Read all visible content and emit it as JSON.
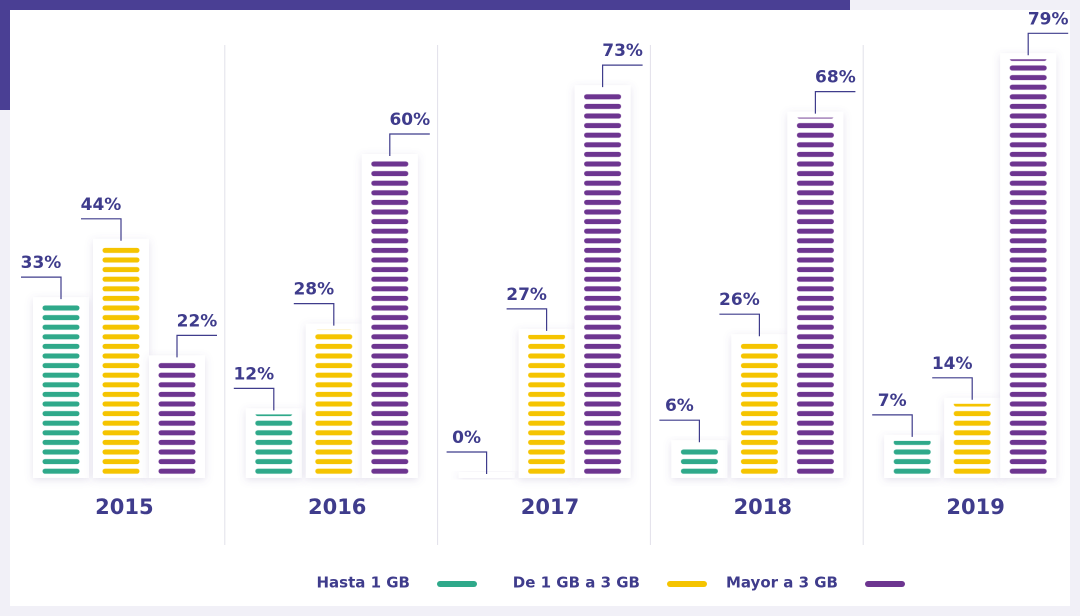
{
  "chart_data": {
    "type": "bar",
    "categories": [
      "2015",
      "2016",
      "2017",
      "2018",
      "2019"
    ],
    "series": [
      {
        "name": "Hasta 1 GB",
        "color": "#2fa98a",
        "values": [
          33,
          12,
          0,
          6,
          7
        ],
        "value_labels": [
          "33%",
          "12%",
          "0%",
          "6%",
          "7%"
        ]
      },
      {
        "name": "De 1 GB a 3 GB",
        "color": "#f5c400",
        "values": [
          44,
          28,
          27,
          26,
          14
        ],
        "value_labels": [
          "44%",
          "28%",
          "27%",
          "26%",
          "14%"
        ]
      },
      {
        "name": "Mayor a 3 GB",
        "color": "#6d3590",
        "values": [
          22,
          60,
          73,
          68,
          79
        ],
        "value_labels": [
          "22%",
          "60%",
          "73%",
          "68%",
          "79%"
        ]
      }
    ],
    "ylim": [
      0,
      80
    ]
  }
}
